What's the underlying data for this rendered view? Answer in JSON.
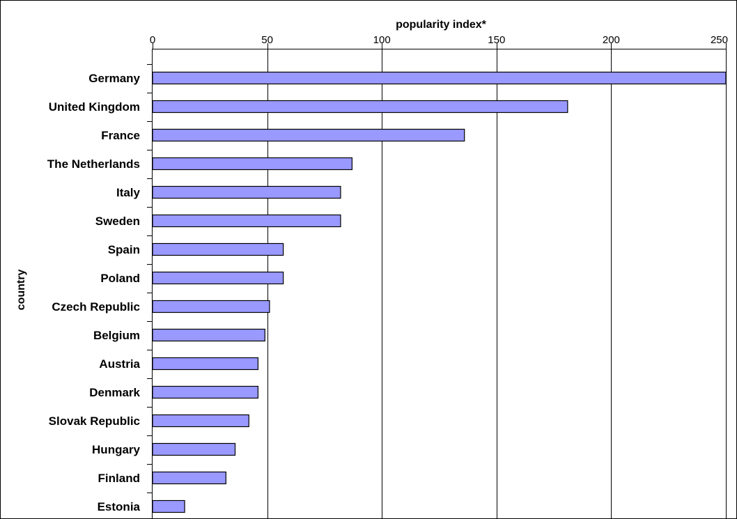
{
  "chart_data": {
    "type": "bar",
    "orientation": "horizontal",
    "xlabel": "popularity index*",
    "ylabel": "country",
    "xlim": [
      0,
      250
    ],
    "x_ticks": [
      0,
      50,
      100,
      150,
      200,
      250
    ],
    "grid": "vertical",
    "categories": [
      "Germany",
      "United Kingdom",
      "France",
      "The Netherlands",
      "Italy",
      "Sweden",
      "Spain",
      "Poland",
      "Czech Republic",
      "Belgium",
      "Austria",
      "Denmark",
      "Slovak Republic",
      "Hungary",
      "Finland",
      "Estonia"
    ],
    "values": [
      250,
      181,
      136,
      87,
      82,
      82,
      57,
      57,
      51,
      49,
      46,
      46,
      42,
      36,
      32,
      14
    ]
  },
  "colors": {
    "bar_fill": "#9999ff",
    "bar_stroke": "#000000",
    "grid": "#000000",
    "background": "#ffffff"
  }
}
